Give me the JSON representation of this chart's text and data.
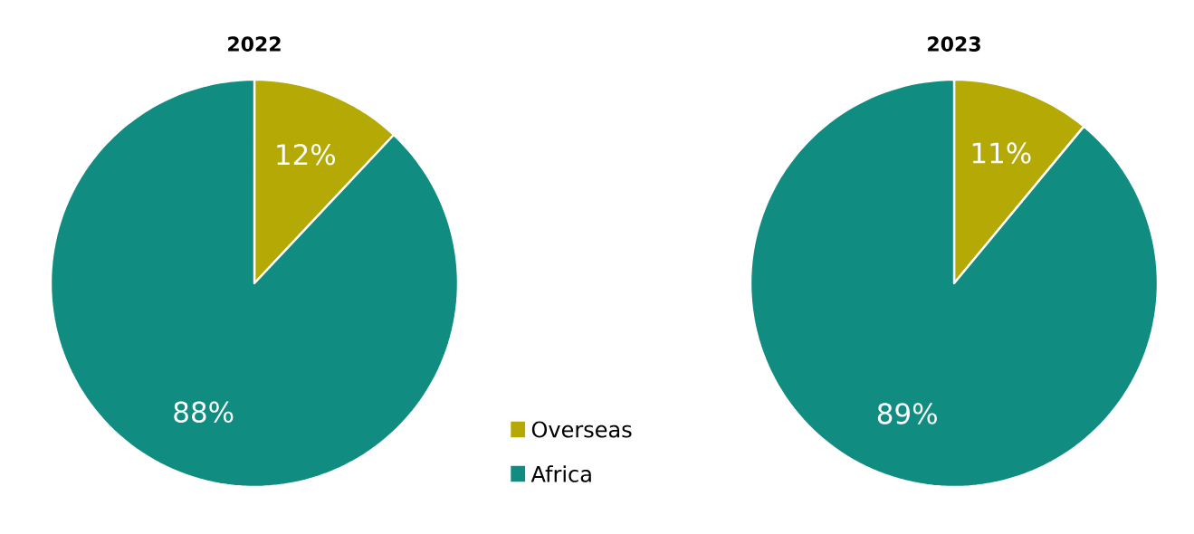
{
  "chart_data": [
    {
      "type": "pie",
      "title": "2022",
      "categories": [
        "Overseas",
        "Africa"
      ],
      "values": [
        12,
        88
      ],
      "colors": [
        "#b5a905",
        "#108c80"
      ],
      "value_labels": [
        "12%",
        "88%"
      ],
      "legend": "right"
    },
    {
      "type": "pie",
      "title": "2023",
      "categories": [
        null,
        null
      ],
      "values": [
        11,
        89
      ],
      "colors": [
        "#b5a905",
        "#108c80"
      ],
      "value_labels": [
        "11%",
        "89%"
      ]
    }
  ]
}
